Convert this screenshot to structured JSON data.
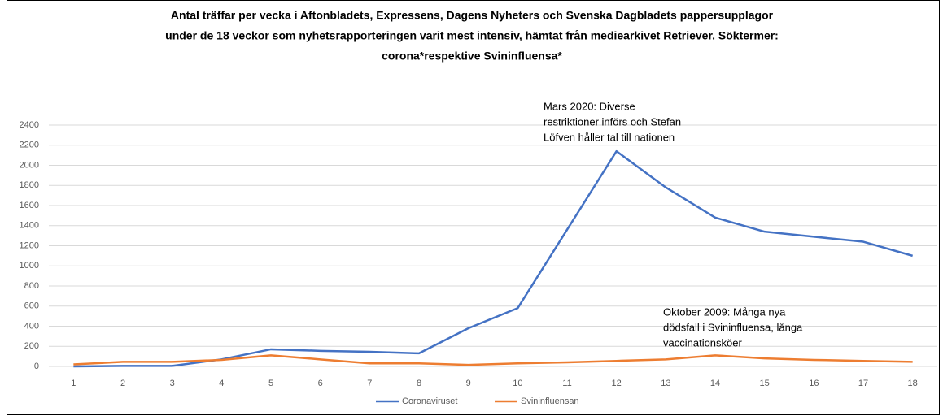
{
  "chart_data": {
    "type": "line",
    "title_lines": [
      "Antal träffar per vecka i Aftonbladets, Expressens, Dagens Nyheters och Svenska Dagbladets pappersupplagor",
      "under de 18 veckor som nyhetsrapporteringen varit mest intensiv, hämtat från mediearkivet Retriever. Söktermer:",
      "corona*respektive Svininfluensa*"
    ],
    "categories": [
      "1",
      "2",
      "3",
      "4",
      "5",
      "6",
      "7",
      "8",
      "9",
      "10",
      "11",
      "12",
      "13",
      "14",
      "15",
      "16",
      "17",
      "18"
    ],
    "series": [
      {
        "name": "Coronaviruset",
        "color": "#4472c4",
        "values": [
          0,
          5,
          5,
          70,
          170,
          155,
          145,
          130,
          380,
          580,
          1360,
          2140,
          1780,
          1480,
          1340,
          1290,
          1240,
          1100
        ]
      },
      {
        "name": "Svininfluensan",
        "color": "#ed7d31",
        "values": [
          20,
          45,
          45,
          65,
          110,
          70,
          30,
          30,
          15,
          30,
          40,
          55,
          70,
          110,
          80,
          65,
          55,
          45
        ]
      }
    ],
    "annotations": [
      {
        "lines": [
          "Mars 2020: Diverse",
          "restriktioner  införs och Stefan",
          "Löfven håller tal till nationen"
        ]
      },
      {
        "lines": [
          "Oktober 2009: Många nya",
          "dödsfall i Svininfluensa, långa",
          "vaccinationsköer"
        ]
      }
    ],
    "ylim": [
      0,
      2400
    ],
    "yticks": [
      0,
      200,
      400,
      600,
      800,
      1000,
      1200,
      1400,
      1600,
      1800,
      2000,
      2200,
      2400
    ],
    "grid": true,
    "legend": "bottom"
  }
}
